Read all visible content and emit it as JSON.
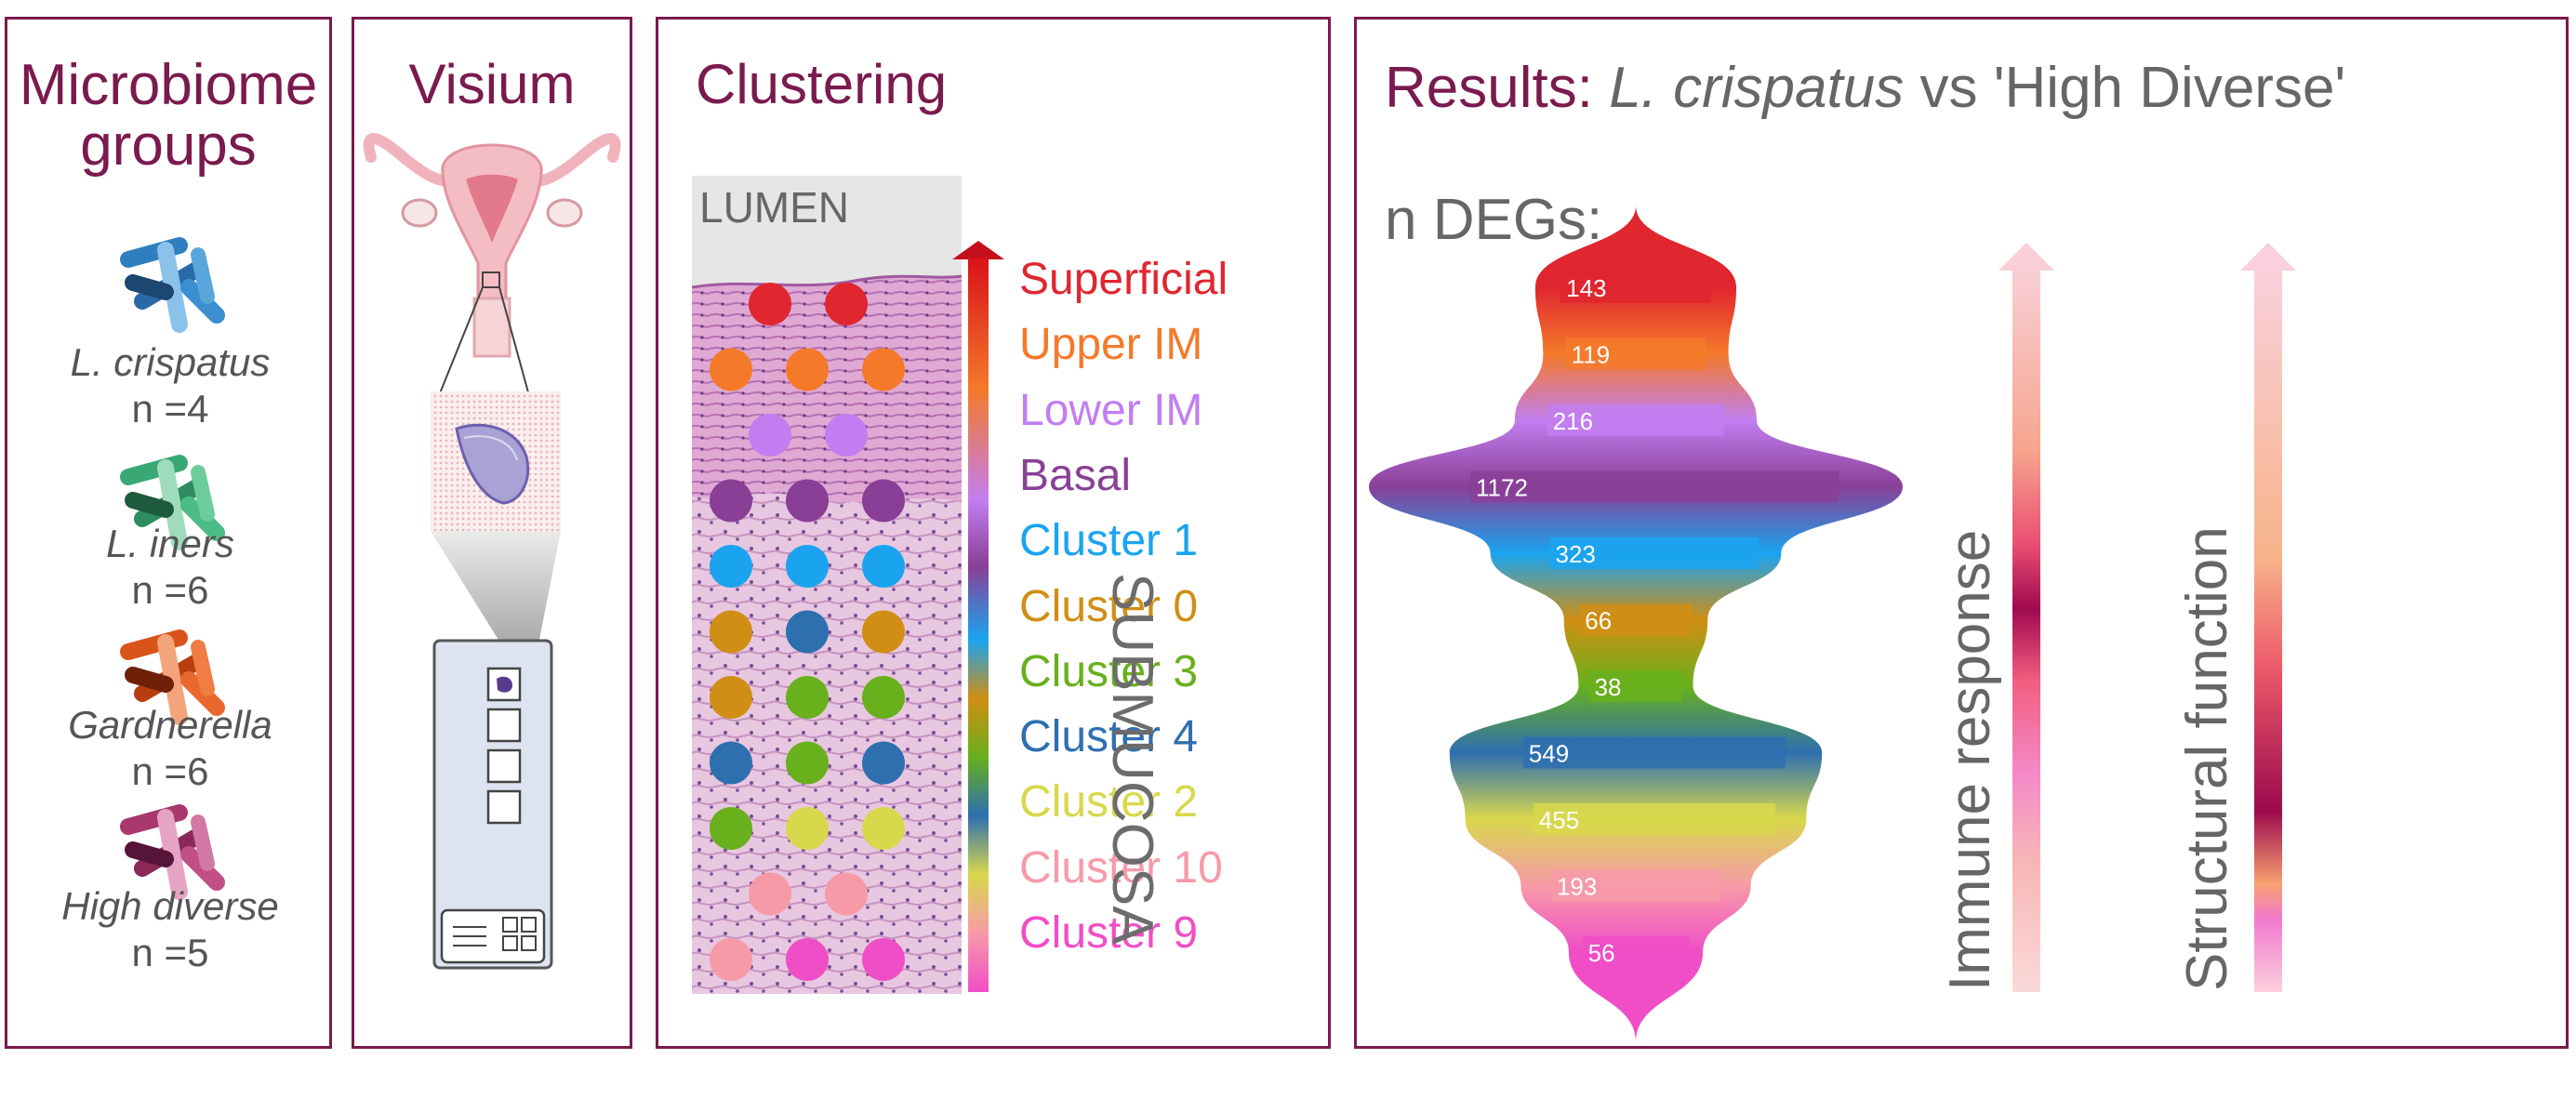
{
  "microbiome": {
    "title": "Microbiome groups",
    "groups": [
      {
        "name": "L. crispatus",
        "n": "n =4",
        "color": "#2f7fbf"
      },
      {
        "name": "L. iners",
        "n": "n =6",
        "color": "#3aa874"
      },
      {
        "name": "Gardnerella",
        "n": "n =6",
        "color": "#d9541a"
      },
      {
        "name": "High diverse",
        "n": "n =5",
        "color": "#a8386e"
      }
    ]
  },
  "visium": {
    "title": "Visium"
  },
  "clustering": {
    "title": "Clustering",
    "lumen_label": "LUMEN",
    "submucosa_label": "SUBMUCOSA",
    "clusters": [
      {
        "label": "Superficial",
        "color": "#e0262f"
      },
      {
        "label": "Upper IM",
        "color": "#f47a2a"
      },
      {
        "label": "Lower IM",
        "color": "#c27ef0"
      },
      {
        "label": "Basal",
        "color": "#8a3f96"
      },
      {
        "label": "Cluster 1",
        "color": "#1aa4f0"
      },
      {
        "label": "Cluster 0",
        "color": "#d08e14"
      },
      {
        "label": "Cluster 3",
        "color": "#68b01c"
      },
      {
        "label": "Cluster 4",
        "color": "#2e6fb0"
      },
      {
        "label": "Cluster 2",
        "color": "#d8d84c"
      },
      {
        "label": "Cluster 10",
        "color": "#f79aa8"
      },
      {
        "label": "Cluster 9",
        "color": "#f04ec6"
      }
    ]
  },
  "results": {
    "title_prefix": "Results:",
    "title_italic": "L. crispatus",
    "title_rest": "vs 'High Diverse'",
    "ndeg_label": "n DEGs:",
    "immune_label": "Immune response",
    "structural_label": "Structural function"
  },
  "chart_data": {
    "type": "bar",
    "title": "n DEGs:",
    "categories": [
      "Superficial",
      "Upper IM",
      "Lower IM",
      "Basal",
      "Cluster 1",
      "Cluster 0",
      "Cluster 3",
      "Cluster 4",
      "Cluster 2",
      "Cluster 10",
      "Cluster 9"
    ],
    "values": [
      143,
      119,
      216,
      1172,
      323,
      66,
      38,
      549,
      455,
      193,
      56
    ],
    "colors": [
      "#e0262f",
      "#f47a2a",
      "#c27ef0",
      "#8a3f96",
      "#1aa4f0",
      "#d08e14",
      "#68b01c",
      "#2e6fb0",
      "#d8d84c",
      "#f79aa8",
      "#f04ec6"
    ]
  }
}
